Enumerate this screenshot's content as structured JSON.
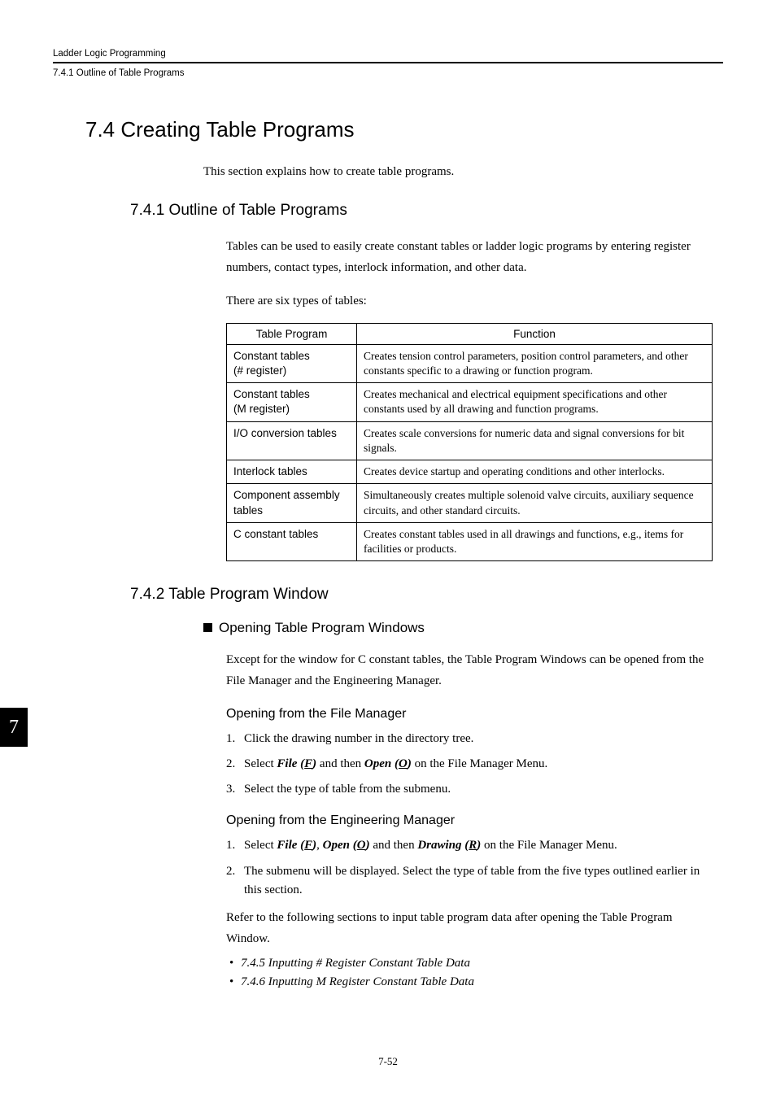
{
  "runningHead": {
    "chapter": "Ladder Logic Programming",
    "section": "7.4.1  Outline of Table Programs"
  },
  "h1": "7.4   Creating Table Programs",
  "intro": "This section explains how to create table programs.",
  "s741": {
    "title": "7.4.1  Outline of Table Programs",
    "p1": "Tables can be used to easily create constant tables or ladder logic programs by entering register numbers, contact types, interlock information, and other data.",
    "p2": "There are six types of tables:",
    "table": {
      "head1": "Table Program",
      "head2": "Function",
      "rows": [
        {
          "c1a": "Constant tables",
          "c1b": "(# register)",
          "c2": "Creates tension control parameters, position control parameters, and other constants specific to a drawing or function program."
        },
        {
          "c1a": "Constant tables",
          "c1b": "(M register)",
          "c2": "Creates mechanical and electrical equipment specifications and other constants used by all drawing and function programs."
        },
        {
          "c1a": "I/O conversion tables",
          "c1b": "",
          "c2": "Creates scale conversions for numeric data and signal conversions for bit signals."
        },
        {
          "c1a": "Interlock tables",
          "c1b": "",
          "c2": "Creates device startup and operating conditions and other interlocks."
        },
        {
          "c1a": "Component assembly",
          "c1b": "tables",
          "c2": "Simultaneously creates multiple solenoid valve circuits, auxiliary sequence circuits, and other standard circuits."
        },
        {
          "c1a": "C constant tables",
          "c1b": "",
          "c2": "Creates constant tables used in all drawings and functions, e.g., items for facilities or products."
        }
      ]
    }
  },
  "s742": {
    "title": "7.4.2  Table Program Window",
    "block": "Opening Table Program Windows",
    "p1": "Except for the window for C constant tables, the Table Program Windows can be opened from the File Manager and the Engineering Manager.",
    "fm": {
      "title": "Opening from the File Manager",
      "step1": "Click the drawing number in the directory tree.",
      "step2a": "Select ",
      "step2_file": "File (",
      "step2_f": "F",
      "step2_file2": ")",
      "step2b": " and then ",
      "step2_open": "Open (",
      "step2_o": "O",
      "step2_open2": ")",
      "step2c": " on the File Manager Menu.",
      "step3": "Select the type of table from the submenu."
    },
    "em": {
      "title": "Opening from the Engineering Manager",
      "step1a": "Select ",
      "s1_file": "File (",
      "s1_f": "F",
      "s1_file2": ")",
      "s1_comma": ", ",
      "s1_open": "Open (",
      "s1_o": "O",
      "s1_open2": ")",
      "s1_then": " and then ",
      "s1_draw": "Drawing (",
      "s1_r": "R",
      "s1_draw2": ")",
      "s1_end": " on the File Manager Menu.",
      "step2": "The submenu will be displayed. Select the type of table from the five types outlined earlier in this section."
    },
    "ref": "Refer to the following sections to input table program data after opening the Table Program Window.",
    "b1": "7.4.5 Inputting # Register Constant Table Data",
    "b2": "7.4.6 Inputting M Register Constant Table Data"
  },
  "tab": "7",
  "footer": "7-52"
}
